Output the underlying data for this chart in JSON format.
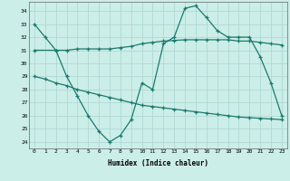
{
  "xlabel": "Humidex (Indice chaleur)",
  "background_color": "#cceee8",
  "grid_color": "#b0d8d4",
  "line_color": "#1a7a6e",
  "xlim": [
    -0.5,
    23.5
  ],
  "ylim": [
    23.5,
    34.7
  ],
  "yticks": [
    24,
    25,
    26,
    27,
    28,
    29,
    30,
    31,
    32,
    33,
    34
  ],
  "xticks": [
    0,
    1,
    2,
    3,
    4,
    5,
    6,
    7,
    8,
    9,
    10,
    11,
    12,
    13,
    14,
    15,
    16,
    17,
    18,
    19,
    20,
    21,
    22,
    23
  ],
  "series1_x": [
    0,
    1,
    2,
    3,
    4,
    5,
    6,
    7,
    8,
    9,
    10,
    11,
    12,
    13,
    14,
    15,
    16,
    17,
    18,
    19,
    20,
    21,
    22,
    23
  ],
  "series1_y": [
    33,
    32,
    31,
    29,
    27.5,
    26,
    24.8,
    24,
    24.5,
    25.7,
    28.5,
    28,
    31.5,
    32,
    34.2,
    34.4,
    33.5,
    32.5,
    32,
    32,
    32,
    30.5,
    28.5,
    26
  ],
  "series2_x": [
    0,
    2,
    3,
    4,
    5,
    6,
    7,
    8,
    9,
    10,
    11,
    12,
    13,
    14,
    15,
    16,
    17,
    18,
    19,
    20,
    21,
    22,
    23
  ],
  "series2_y": [
    31.0,
    31.0,
    31.0,
    31.1,
    31.1,
    31.1,
    31.1,
    31.2,
    31.3,
    31.5,
    31.6,
    31.7,
    31.75,
    31.8,
    31.8,
    31.8,
    31.8,
    31.8,
    31.7,
    31.7,
    31.6,
    31.5,
    31.4
  ],
  "series3_x": [
    0,
    1,
    2,
    3,
    4,
    5,
    6,
    7,
    8,
    9,
    10,
    11,
    12,
    13,
    14,
    15,
    16,
    17,
    18,
    19,
    20,
    21,
    22,
    23
  ],
  "series3_y": [
    29.0,
    28.8,
    28.5,
    28.3,
    28.0,
    27.8,
    27.6,
    27.4,
    27.2,
    27.0,
    26.8,
    26.7,
    26.6,
    26.5,
    26.4,
    26.3,
    26.2,
    26.1,
    26.0,
    25.9,
    25.85,
    25.8,
    25.75,
    25.7
  ]
}
